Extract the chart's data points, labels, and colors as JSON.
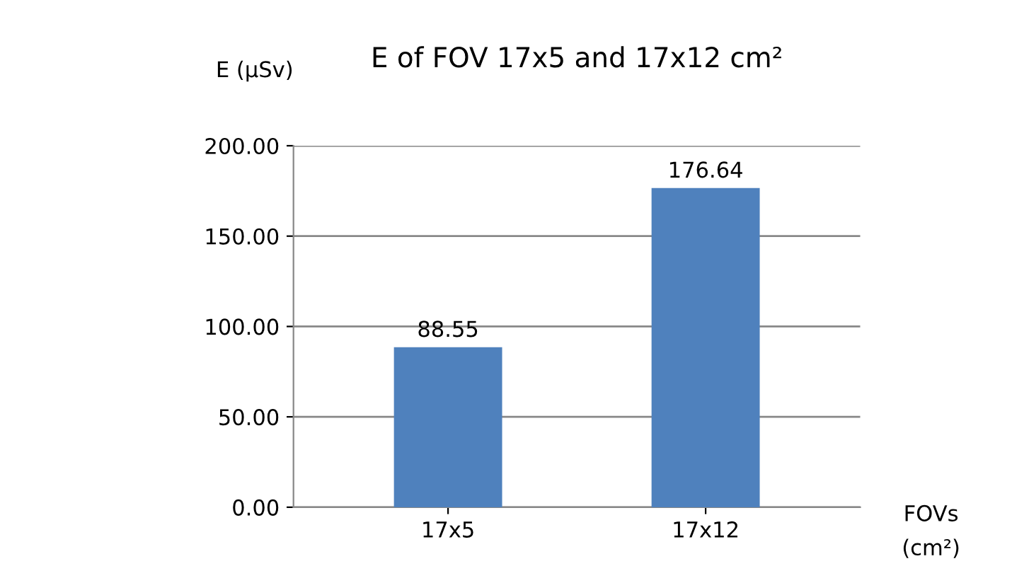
{
  "chart_data": {
    "type": "bar",
    "title": "E of FOV 17x5 and 17x12 cm²",
    "ylabel": "E (µSv)",
    "xlabel": "FOVs\n(cm²)",
    "categories": [
      "17x5",
      "17x12"
    ],
    "values": [
      88.55,
      176.64
    ],
    "color": "#4f81bd",
    "ylim": [
      0,
      200
    ],
    "yticks": [
      {
        "value": 0,
        "label": "0.00"
      },
      {
        "value": 50,
        "label": "50.00"
      },
      {
        "value": 100,
        "label": "100.00"
      },
      {
        "value": 150,
        "label": "150.00"
      },
      {
        "value": 200,
        "label": "200.00"
      }
    ],
    "grid": "y",
    "data_labels": true
  }
}
